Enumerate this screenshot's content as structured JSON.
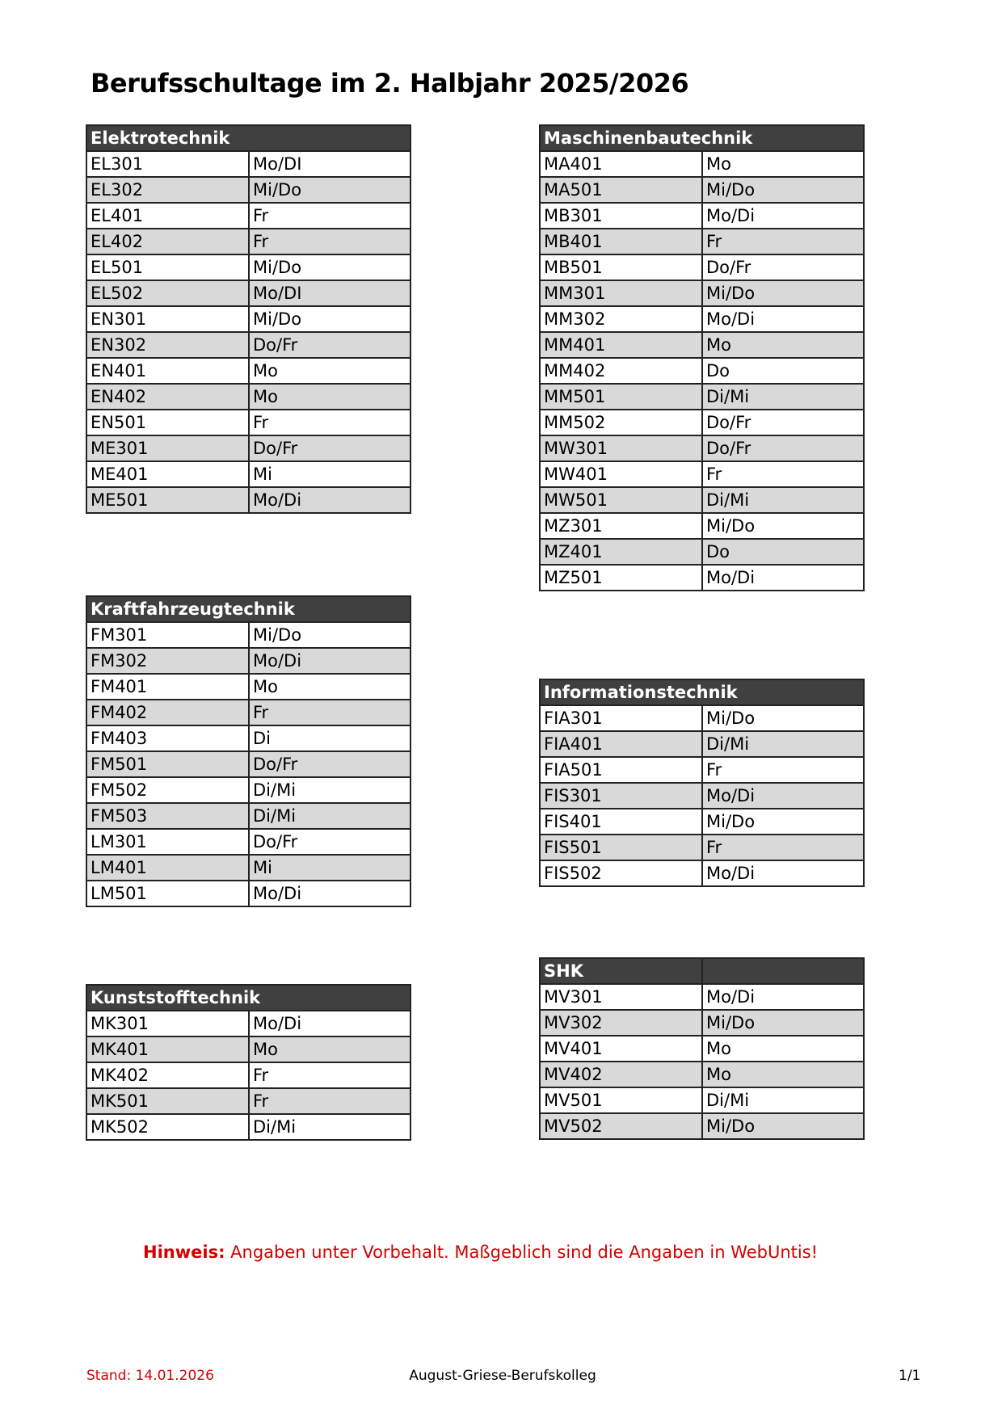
{
  "title": "Berufsschultage im 2. Halbjahr 2025/2026",
  "colors": {
    "header_bg": "#404040",
    "row_alt": "#d9d9d9",
    "note": "#d40000"
  },
  "groups": [
    {
      "name": "Elektrotechnik",
      "rows": [
        [
          "EL301",
          "Mo/DI"
        ],
        [
          "EL302",
          "Mi/Do"
        ],
        [
          "EL401",
          "Fr"
        ],
        [
          "EL402",
          "Fr"
        ],
        [
          "EL501",
          "Mi/Do"
        ],
        [
          "EL502",
          "Mo/DI"
        ],
        [
          "EN301",
          "Mi/Do"
        ],
        [
          "EN302",
          "Do/Fr"
        ],
        [
          "EN401",
          "Mo"
        ],
        [
          "EN402",
          "Mo"
        ],
        [
          "EN501",
          "Fr"
        ],
        [
          "ME301",
          "Do/Fr"
        ],
        [
          "ME401",
          "Mi"
        ],
        [
          "ME501",
          "Mo/Di"
        ]
      ]
    },
    {
      "name": "Kraftfahrzeugtechnik",
      "rows": [
        [
          "FM301",
          "Mi/Do"
        ],
        [
          "FM302",
          "Mo/Di"
        ],
        [
          "FM401",
          "Mo"
        ],
        [
          "FM402",
          "Fr"
        ],
        [
          "FM403",
          "Di"
        ],
        [
          "FM501",
          "Do/Fr"
        ],
        [
          "FM502",
          "Di/Mi"
        ],
        [
          "FM503",
          "Di/Mi"
        ],
        [
          "LM301",
          "Do/Fr"
        ],
        [
          "LM401",
          "Mi"
        ],
        [
          "LM501",
          "Mo/Di"
        ]
      ]
    },
    {
      "name": "Kunststofftechnik",
      "rows": [
        [
          "MK301",
          "Mo/Di"
        ],
        [
          "MK401",
          "Mo"
        ],
        [
          "MK402",
          "Fr"
        ],
        [
          "MK501",
          "Fr"
        ],
        [
          "MK502",
          "Di/Mi"
        ]
      ]
    },
    {
      "name": "Maschinenbautechnik",
      "rows": [
        [
          "MA401",
          "Mo"
        ],
        [
          "MA501",
          "Mi/Do"
        ],
        [
          "MB301",
          "Mo/Di"
        ],
        [
          "MB401",
          "Fr"
        ],
        [
          "MB501",
          "Do/Fr"
        ],
        [
          "MM301",
          "Mi/Do"
        ],
        [
          "MM302",
          "Mo/Di"
        ],
        [
          "MM401",
          "Mo"
        ],
        [
          "MM402",
          "Do"
        ],
        [
          "MM501",
          "Di/Mi"
        ],
        [
          "MM502",
          "Do/Fr"
        ],
        [
          "MW301",
          "Do/Fr"
        ],
        [
          "MW401",
          "Fr"
        ],
        [
          "MW501",
          "Di/Mi"
        ],
        [
          "MZ301",
          "Mi/Do"
        ],
        [
          "MZ401",
          "Do"
        ],
        [
          "MZ501",
          "Mo/Di"
        ]
      ]
    },
    {
      "name": "Informationstechnik",
      "rows": [
        [
          "FIA301",
          "Mi/Do"
        ],
        [
          "FIA401",
          "Di/Mi"
        ],
        [
          "FIA501",
          "Fr"
        ],
        [
          "FIS301",
          "Mo/Di"
        ],
        [
          "FIS401",
          "Mi/Do"
        ],
        [
          "FIS501",
          "Fr"
        ],
        [
          "FIS502",
          "Mo/Di"
        ]
      ]
    },
    {
      "name": "SHK",
      "split_header": true,
      "rows": [
        [
          "MV301",
          "Mo/Di"
        ],
        [
          "MV302",
          "Mi/Do"
        ],
        [
          "MV401",
          "Mo"
        ],
        [
          "MV402",
          "Mo"
        ],
        [
          "MV501",
          "Di/Mi"
        ],
        [
          "MV502",
          "Mi/Do"
        ]
      ]
    }
  ],
  "note": {
    "label": "Hinweis:",
    "text": " Angaben unter Vorbehalt. Maßgeblich sind die Angaben in WebUntis!"
  },
  "footer": {
    "stand": "Stand: 14.01.2026",
    "school": "August-Griese-Berufskolleg",
    "page": "1/1"
  }
}
